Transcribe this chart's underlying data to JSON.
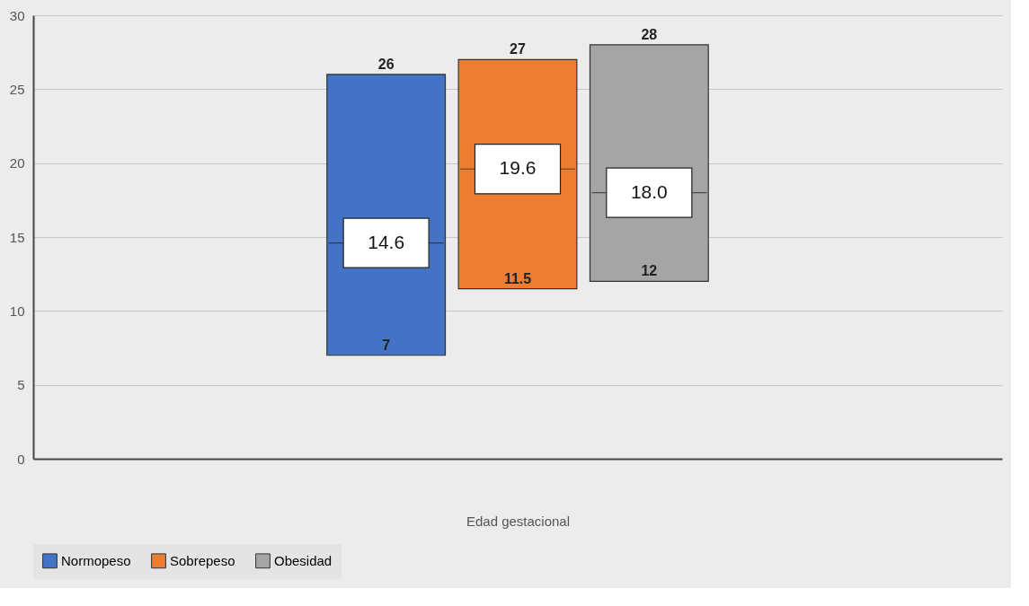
{
  "chart_data": {
    "type": "box",
    "categories": [
      null
    ],
    "xlabel": "Edad gestacional",
    "series": [
      {
        "name": "Normopeso",
        "color": "#4472c4",
        "boxes": [
          {
            "low": 7,
            "q1": 7,
            "median": 14.6,
            "q3": 26,
            "high": 26
          }
        ]
      },
      {
        "name": "Sobrepeso",
        "color": "#ed7d31",
        "boxes": [
          {
            "low": 11.5,
            "q1": 11.5,
            "median": 19.6,
            "q3": 27,
            "high": 27
          }
        ]
      },
      {
        "name": "Obesidad",
        "color": "#a5a5a5",
        "boxes": [
          {
            "low": 12,
            "q1": 12,
            "median": 18.0,
            "q3": 28,
            "high": 28
          }
        ]
      }
    ],
    "annotations": [
      "26",
      "7",
      "14.6",
      "27",
      "11.5",
      "19.6",
      "28",
      "12",
      "18.0"
    ],
    "ylim": [
      0,
      30
    ],
    "yticks": [
      0,
      5,
      10,
      15,
      20,
      25,
      30
    ],
    "grid": "y",
    "legend": "bottom"
  }
}
